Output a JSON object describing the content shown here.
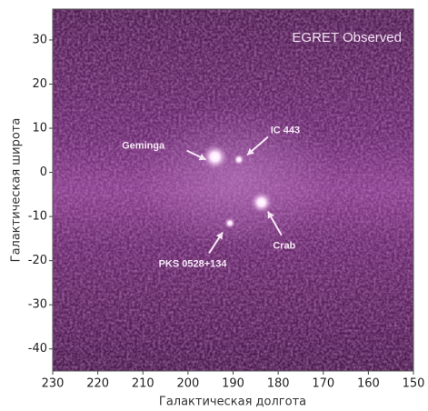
{
  "chart_data": {
    "type": "image",
    "title": "EGRET Observed",
    "xlabel": "Галактическая долгота",
    "ylabel": "Галактическая широта",
    "xlim": [
      230,
      150
    ],
    "xticks": [
      230,
      220,
      210,
      200,
      190,
      180,
      170,
      160,
      150
    ],
    "ylim": [
      -45,
      37
    ],
    "yticks": [
      30,
      20,
      10,
      0,
      -10,
      -20,
      -30,
      -40
    ],
    "sources": [
      {
        "name": "Geminga",
        "x": 194,
        "y": 3.5
      },
      {
        "name": "IC 443",
        "x": 188.7,
        "y": 2.9
      },
      {
        "name": "Crab",
        "x": 183.7,
        "y": -6.8
      },
      {
        "name": "PKS 0528+134",
        "x": 190.7,
        "y": -11.5
      }
    ]
  }
}
